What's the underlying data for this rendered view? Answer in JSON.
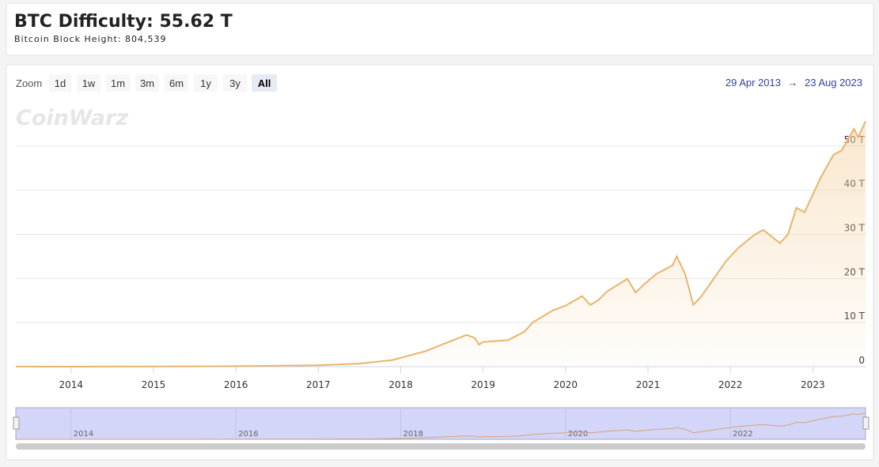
{
  "header": {
    "title": "BTC Difficulty: 55.62 T",
    "subtitle": "Bitcoin Block Height: 804,539"
  },
  "zoom": {
    "label": "Zoom",
    "buttons": [
      "1d",
      "1w",
      "1m",
      "3m",
      "6m",
      "1y",
      "3y",
      "All"
    ],
    "active": "All"
  },
  "range": {
    "from": "29 Apr 2013",
    "separator": "→",
    "to": "23 Aug 2023"
  },
  "watermark": "CoinWarz",
  "chart_data": {
    "type": "area",
    "color": "#e9b46b",
    "grid": true,
    "x": [
      2013.33,
      2014.0,
      2015.0,
      2016.0,
      2017.0,
      2017.5,
      2017.9,
      2018.0,
      2018.3,
      2018.5,
      2018.8,
      2018.9,
      2018.95,
      2019.0,
      2019.3,
      2019.5,
      2019.6,
      2019.85,
      2020.0,
      2020.2,
      2020.3,
      2020.4,
      2020.5,
      2020.75,
      2020.85,
      2020.95,
      2021.1,
      2021.3,
      2021.35,
      2021.45,
      2021.55,
      2021.65,
      2021.8,
      2021.95,
      2022.1,
      2022.3,
      2022.4,
      2022.6,
      2022.7,
      2022.8,
      2022.9,
      2023.0,
      2023.1,
      2023.25,
      2023.35,
      2023.5,
      2023.55,
      2023.64
    ],
    "values": [
      0.01,
      0.0014,
      0.04,
      0.1,
      0.3,
      0.7,
      1.5,
      2,
      3.5,
      5,
      7.2,
      6.5,
      5,
      5.6,
      6,
      7.9,
      10,
      12.8,
      13.8,
      16,
      14,
      15.1,
      17,
      19.9,
      16.8,
      18.6,
      21,
      23,
      25,
      21,
      14,
      16,
      20,
      24,
      27,
      30,
      31,
      28,
      30,
      36,
      35,
      39,
      43,
      48,
      49,
      53.9,
      52,
      55.6
    ],
    "xlim": [
      2013.33,
      2023.64
    ],
    "xticks": [
      2014,
      2015,
      2016,
      2017,
      2018,
      2019,
      2020,
      2021,
      2022,
      2023
    ],
    "ylim": [
      0,
      60
    ],
    "yticks": [
      0,
      {
        "value": 10,
        "label": "10 T"
      },
      {
        "value": 20,
        "label": "20 T"
      },
      {
        "value": 30,
        "label": "30 T"
      },
      {
        "value": 40,
        "label": "40 T"
      },
      {
        "value": 50,
        "label": "50 T"
      }
    ],
    "navigator_xticks": [
      2014,
      2016,
      2018,
      2020,
      2022
    ]
  }
}
